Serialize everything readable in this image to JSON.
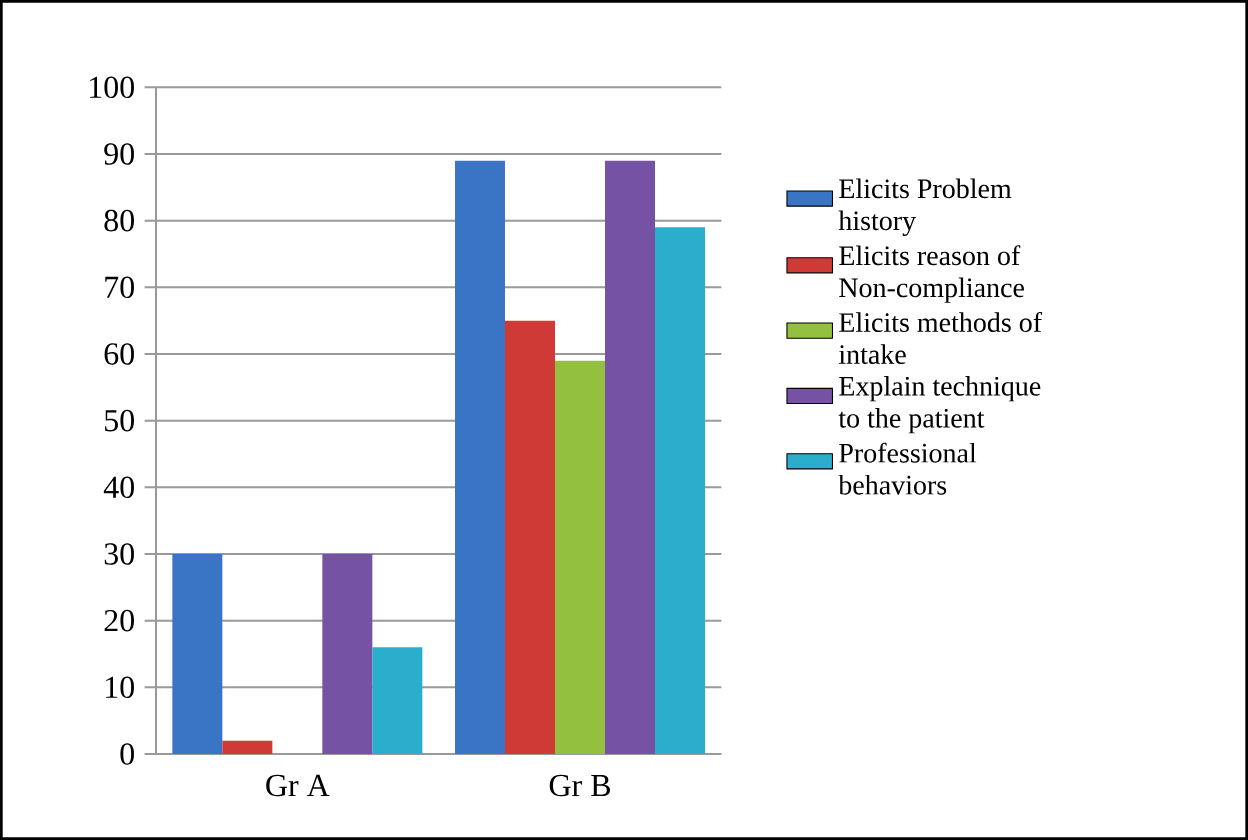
{
  "chart_data": {
    "type": "bar",
    "categories": [
      "Gr A",
      "Gr B"
    ],
    "series": [
      {
        "name": "Elicits Problem history",
        "color": "#3a74c4",
        "values": [
          30,
          89
        ]
      },
      {
        "name": "Elicits reason of Non-compliance",
        "color": "#d03a36",
        "values": [
          2,
          65
        ]
      },
      {
        "name": "Elicits methods of intake",
        "color": "#94c040",
        "values": [
          0,
          59
        ]
      },
      {
        "name": "Explain technique to the patient",
        "color": "#7652a4",
        "values": [
          30,
          89
        ]
      },
      {
        "name": "Professional behaviors",
        "color": "#2aaecc",
        "values": [
          16,
          79
        ]
      }
    ],
    "ylim": [
      0,
      100
    ],
    "yticks": [
      0,
      10,
      20,
      30,
      40,
      50,
      60,
      70,
      80,
      90,
      100
    ],
    "grid": "y",
    "legend": "right"
  }
}
